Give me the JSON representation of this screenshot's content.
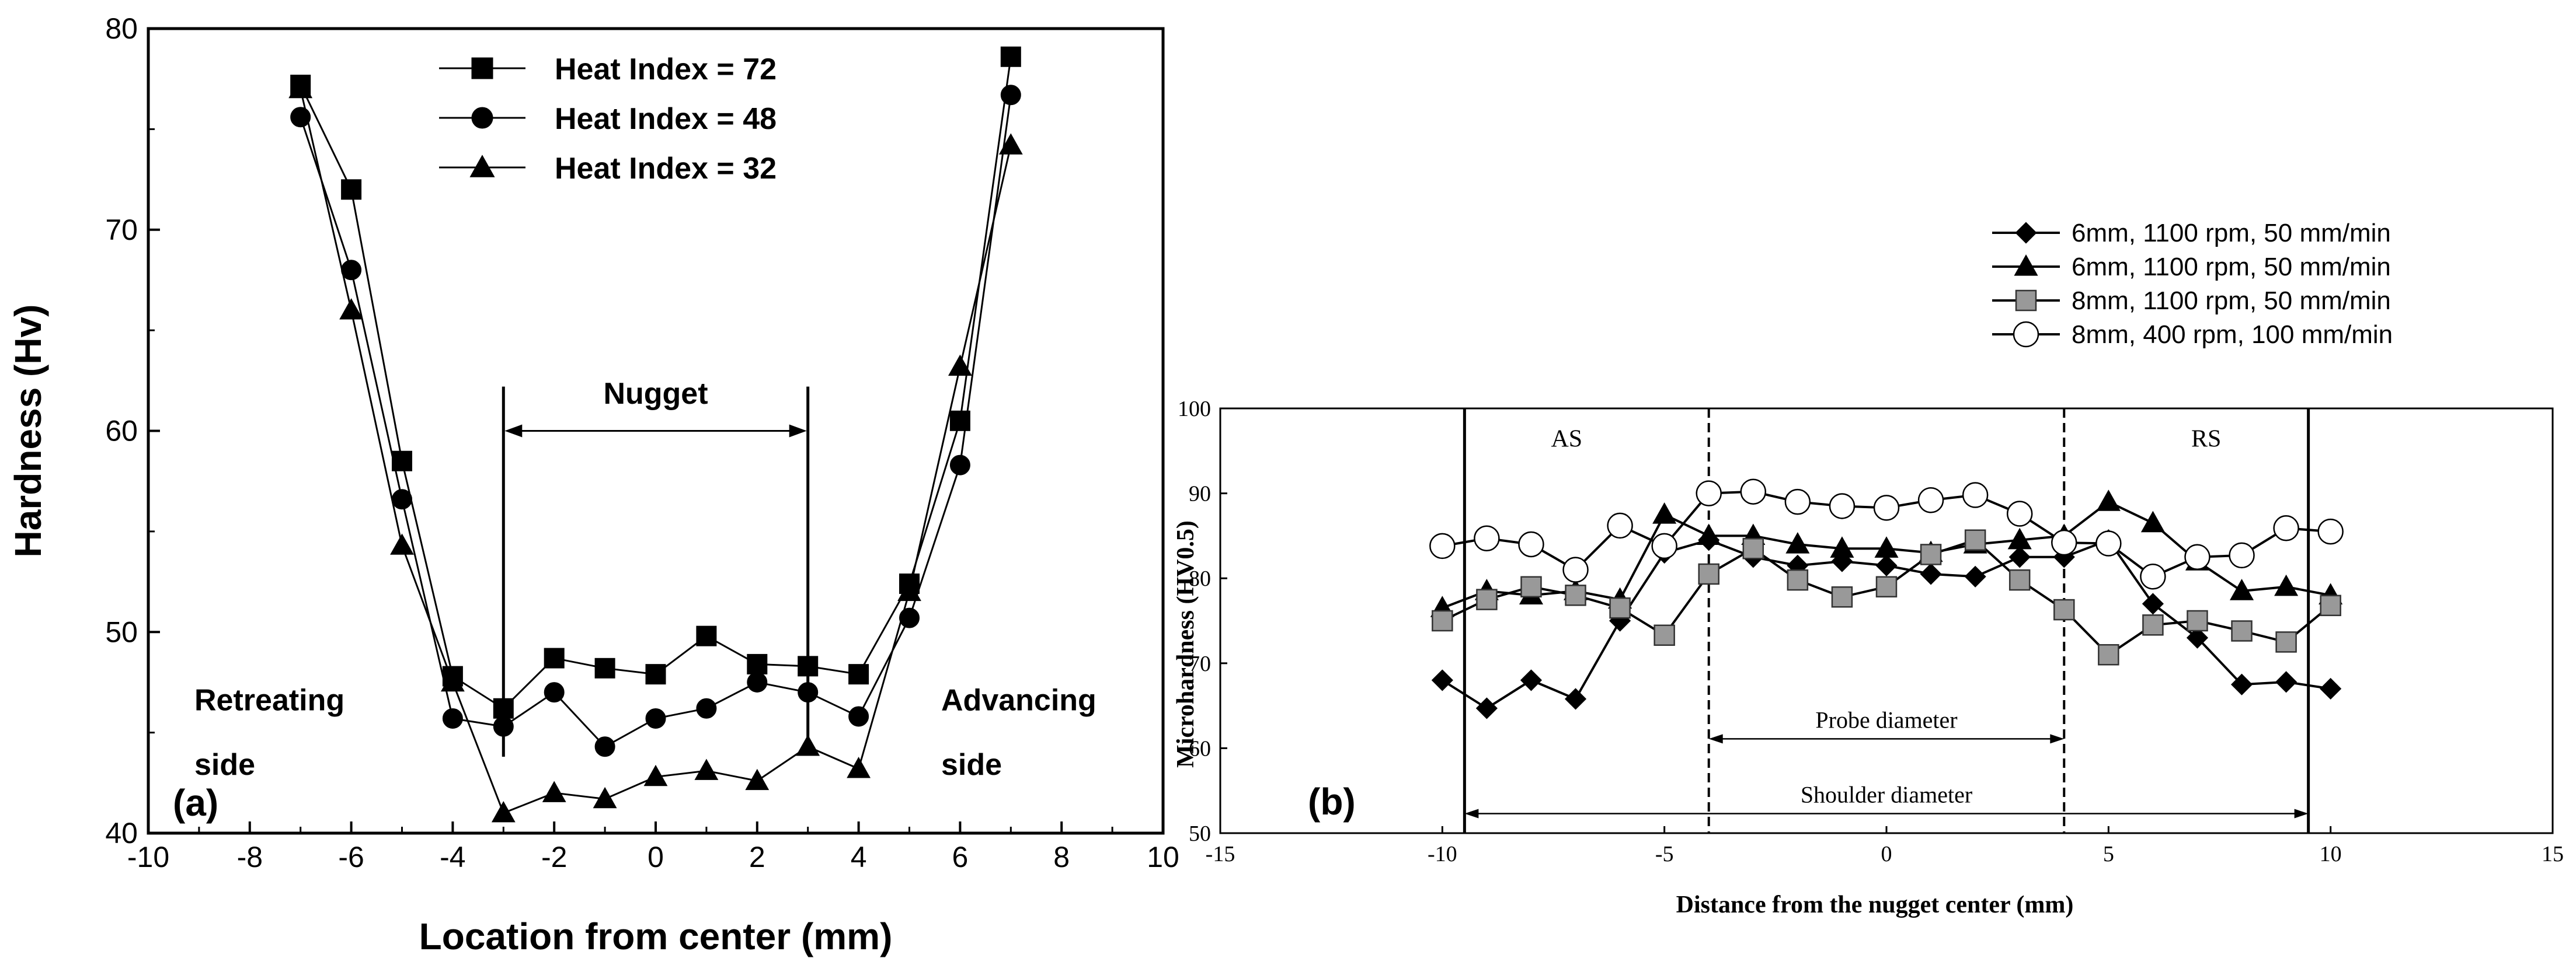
{
  "chart_data": [
    {
      "type": "line",
      "panel_label": "(a)",
      "xlabel": "Location from center (mm)",
      "ylabel": "Hardness (Hv)",
      "xlim": [
        -10,
        10
      ],
      "ylim": [
        40,
        80
      ],
      "x_ticks": [
        "-10",
        "-8",
        "-6",
        "-4",
        "-2",
        "0",
        "2",
        "4",
        "6",
        "8",
        "10"
      ],
      "y_ticks": [
        "40",
        "50",
        "60",
        "70",
        "80"
      ],
      "series": [
        {
          "name": "Heat Index = 72",
          "marker": "square",
          "x": [
            -7,
            -6,
            -5,
            -4,
            -3,
            -2,
            -1,
            0,
            1,
            2,
            3,
            4,
            5,
            6,
            7
          ],
          "y": [
            77.2,
            72.0,
            58.5,
            47.8,
            46.2,
            48.7,
            48.2,
            47.9,
            49.8,
            48.4,
            48.3,
            47.9,
            52.4,
            60.5,
            78.6
          ]
        },
        {
          "name": "Heat Index = 48",
          "marker": "circle",
          "x": [
            -7,
            -6,
            -5,
            -4,
            -3,
            -2,
            -1,
            0,
            1,
            2,
            3,
            4,
            5,
            6,
            7
          ],
          "y": [
            75.6,
            68.0,
            56.6,
            45.7,
            45.3,
            47.0,
            44.3,
            45.7,
            46.2,
            47.5,
            47.0,
            45.8,
            50.7,
            58.3,
            76.7
          ]
        },
        {
          "name": "Heat Index = 32",
          "marker": "triangle",
          "x": [
            -7,
            -6,
            -5,
            -4,
            -3,
            -2,
            -1,
            0,
            1,
            2,
            3,
            4,
            5,
            6,
            7
          ],
          "y": [
            77.0,
            66.0,
            54.3,
            47.5,
            41.0,
            42.0,
            41.7,
            42.8,
            43.1,
            42.6,
            44.3,
            43.2,
            52.0,
            63.2,
            74.2
          ]
        }
      ],
      "annotations": {
        "nugget": "Nugget",
        "nugget_range": [
          -3,
          3
        ],
        "retreating": [
          "Retreating",
          "side"
        ],
        "advancing": [
          "Advancing",
          "side"
        ]
      },
      "legend_position": "top-center"
    },
    {
      "type": "line",
      "panel_label": "(b)",
      "xlabel": "Distance from the nugget center (mm)",
      "ylabel": "Microhardness (HV0.5)",
      "xlim": [
        -15,
        15
      ],
      "ylim": [
        50,
        100
      ],
      "x_ticks": [
        "-15",
        "-10",
        "-5",
        "0",
        "5",
        "10",
        "15"
      ],
      "y_ticks": [
        "50",
        "60",
        "70",
        "80",
        "90",
        "100"
      ],
      "series": [
        {
          "name": "6mm, 1100 rpm, 50 mm/min",
          "marker": "diamond",
          "x": [
            -10,
            -9,
            -8,
            -7,
            -6,
            -5,
            -4,
            -3,
            -2,
            -1,
            0,
            1,
            2,
            3,
            4,
            5,
            6,
            7,
            8,
            9,
            10
          ],
          "y": [
            68,
            64.7,
            68,
            65.8,
            75,
            83,
            84.5,
            82.5,
            81.5,
            82,
            81.5,
            80.5,
            80.2,
            82.5,
            82.5,
            84.5,
            77,
            73,
            67.5,
            67.8,
            67
          ]
        },
        {
          "name": "6mm, 1100 rpm, 50 mm/min",
          "marker": "triangle",
          "x": [
            -10,
            -9,
            -8,
            -7,
            -6,
            -5,
            -4,
            -3,
            -2,
            -1,
            0,
            1,
            2,
            3,
            4,
            5,
            6,
            7,
            8,
            9,
            10
          ],
          "y": [
            76.5,
            78.5,
            78,
            78.5,
            77.5,
            87.5,
            85,
            85,
            84,
            83.5,
            83.5,
            83,
            84,
            84.5,
            85,
            89,
            86.5,
            82,
            78.5,
            79,
            78
          ]
        },
        {
          "name": "8mm, 1100 rpm, 50 mm/min",
          "marker": "square",
          "x": [
            -10,
            -9,
            -8,
            -7,
            -6,
            -5,
            -4,
            -3,
            -2,
            -1,
            0,
            1,
            2,
            3,
            4,
            5,
            6,
            7,
            8,
            9,
            10
          ],
          "y": [
            75,
            77.5,
            79,
            78,
            76.5,
            73.3,
            80.5,
            83.5,
            79.8,
            77.8,
            79,
            82.8,
            84.5,
            79.8,
            76.3,
            71,
            74.5,
            75,
            73.8,
            72.5,
            76.8
          ]
        },
        {
          "name": "8mm, 400 rpm, 100 mm/min",
          "marker": "open-circle",
          "x": [
            -10,
            -9,
            -8,
            -7,
            -6,
            -5,
            -4,
            -3,
            -2,
            -1,
            0,
            1,
            2,
            3,
            4,
            5,
            6,
            7,
            8,
            9,
            10
          ],
          "y": [
            83.8,
            84.7,
            84,
            81,
            86.2,
            83.8,
            90,
            90.2,
            89,
            88.5,
            88.3,
            89.2,
            89.8,
            87.6,
            84.2,
            84.1,
            80.2,
            82.5,
            82.7,
            85.9,
            85.5
          ]
        }
      ],
      "annotations": {
        "as": "AS",
        "rs": "RS",
        "probe": "Probe diameter",
        "probe_range": [
          -4,
          4
        ],
        "shoulder": "Shoulder diameter",
        "shoulder_range": [
          -9.5,
          9.5
        ]
      },
      "legend_position": "top-right, outside"
    }
  ]
}
